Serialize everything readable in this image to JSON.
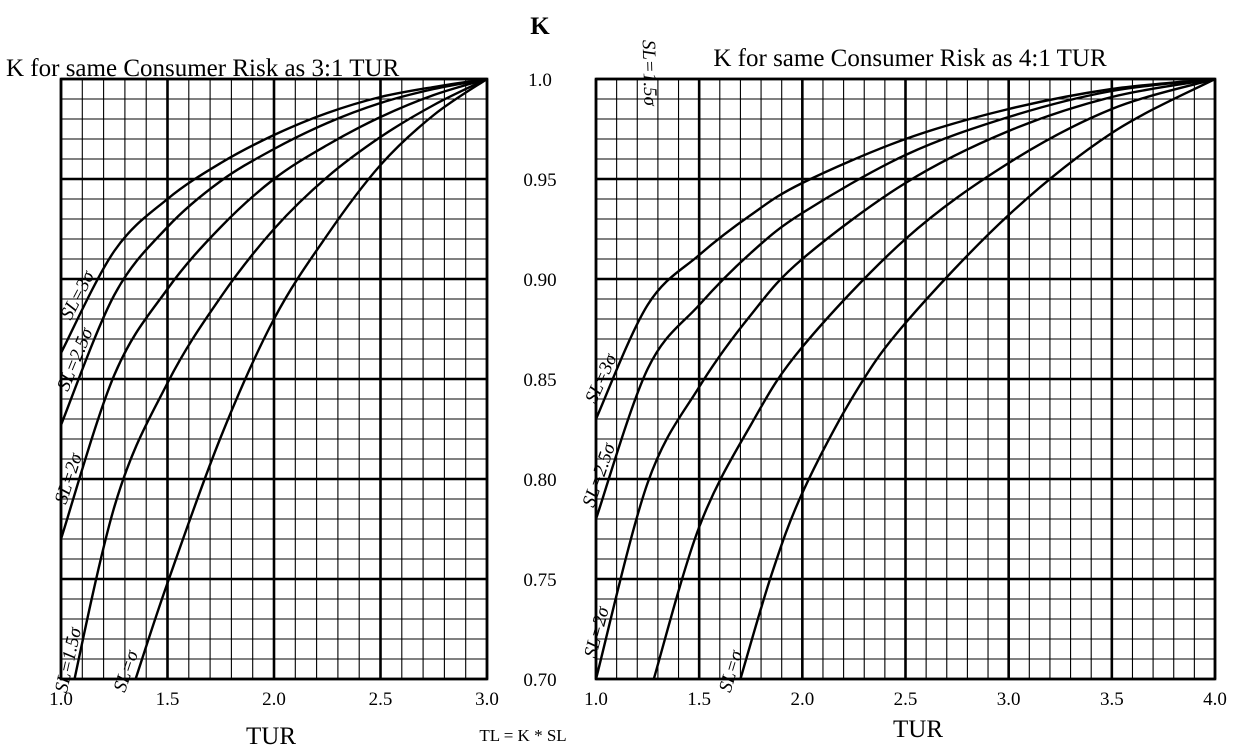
{
  "shared": {
    "k_axis_title": "K",
    "k_ticks": [
      "1.0",
      "0.95",
      "0.90",
      "0.85",
      "0.80",
      "0.75",
      "0.70"
    ],
    "footnote": "TL = K * SL"
  },
  "chart_data": [
    {
      "type": "line",
      "title": "K for same Consumer Risk as 3:1 TUR",
      "xlabel": "TUR",
      "ylabel": "K",
      "xlim": [
        1.0,
        3.0
      ],
      "ylim": [
        0.7,
        1.0
      ],
      "x_ticks": [
        "1.0",
        "1.5",
        "2.0",
        "2.5",
        "3.0"
      ],
      "grid": true,
      "series": [
        {
          "name": "SL=3σ",
          "points": [
            [
              1.0,
              0.863
            ],
            [
              1.25,
              0.914
            ],
            [
              1.5,
              0.94
            ],
            [
              1.75,
              0.958
            ],
            [
              2.0,
              0.972
            ],
            [
              2.25,
              0.983
            ],
            [
              2.5,
              0.991
            ],
            [
              2.75,
              0.996
            ],
            [
              3.0,
              1.0
            ]
          ]
        },
        {
          "name": "SL=2.5σ",
          "points": [
            [
              1.0,
              0.827
            ],
            [
              1.25,
              0.892
            ],
            [
              1.5,
              0.926
            ],
            [
              1.75,
              0.949
            ],
            [
              2.0,
              0.965
            ],
            [
              2.25,
              0.978
            ],
            [
              2.5,
              0.988
            ],
            [
              2.75,
              0.995
            ],
            [
              3.0,
              1.0
            ]
          ]
        },
        {
          "name": "SL=2σ",
          "points": [
            [
              1.0,
              0.77
            ],
            [
              1.25,
              0.852
            ],
            [
              1.5,
              0.895
            ],
            [
              1.75,
              0.926
            ],
            [
              2.0,
              0.95
            ],
            [
              2.25,
              0.967
            ],
            [
              2.5,
              0.981
            ],
            [
              2.75,
              0.992
            ],
            [
              3.0,
              1.0
            ]
          ]
        },
        {
          "name": "SL=1.5σ",
          "points": [
            [
              1.0,
              0.668
            ],
            [
              1.25,
              0.786
            ],
            [
              1.5,
              0.848
            ],
            [
              1.75,
              0.891
            ],
            [
              2.0,
              0.925
            ],
            [
              2.25,
              0.951
            ],
            [
              2.5,
              0.971
            ],
            [
              2.75,
              0.987
            ],
            [
              3.0,
              1.0
            ]
          ]
        },
        {
          "name": "SL=σ",
          "points": [
            [
              1.35,
              0.7
            ],
            [
              1.5,
              0.748
            ],
            [
              1.75,
              0.821
            ],
            [
              2.0,
              0.88
            ],
            [
              2.25,
              0.922
            ],
            [
              2.5,
              0.957
            ],
            [
              2.75,
              0.982
            ],
            [
              3.0,
              1.0
            ]
          ]
        }
      ]
    },
    {
      "type": "line",
      "title": "K for same Consumer Risk as 4:1 TUR",
      "xlabel": "TUR",
      "ylabel": "K",
      "xlim": [
        1.0,
        4.0
      ],
      "ylim": [
        0.7,
        1.0
      ],
      "x_ticks": [
        "1.0",
        "1.5",
        "2.0",
        "2.5",
        "3.0",
        "3.5",
        "4.0"
      ],
      "grid": true,
      "series": [
        {
          "name": "SL=3σ",
          "points": [
            [
              1.0,
              0.83
            ],
            [
              1.25,
              0.887
            ],
            [
              1.5,
              0.912
            ],
            [
              1.75,
              0.932
            ],
            [
              2.0,
              0.948
            ],
            [
              2.5,
              0.97
            ],
            [
              3.0,
              0.985
            ],
            [
              3.5,
              0.995
            ],
            [
              4.0,
              1.0
            ]
          ]
        },
        {
          "name": "SL=2.5σ",
          "points": [
            [
              1.0,
              0.78
            ],
            [
              1.25,
              0.855
            ],
            [
              1.5,
              0.887
            ],
            [
              1.75,
              0.913
            ],
            [
              2.0,
              0.933
            ],
            [
              2.5,
              0.962
            ],
            [
              3.0,
              0.981
            ],
            [
              3.5,
              0.994
            ],
            [
              4.0,
              1.0
            ]
          ]
        },
        {
          "name": "SL=2σ",
          "points": [
            [
              1.0,
              0.7
            ],
            [
              1.25,
              0.798
            ],
            [
              1.5,
              0.846
            ],
            [
              1.75,
              0.882
            ],
            [
              2.0,
              0.91
            ],
            [
              2.5,
              0.948
            ],
            [
              3.0,
              0.974
            ],
            [
              3.5,
              0.991
            ],
            [
              4.0,
              1.0
            ]
          ]
        },
        {
          "name": "SL=1.5σ",
          "points": [
            [
              1.28,
              0.7
            ],
            [
              1.5,
              0.776
            ],
            [
              1.75,
              0.827
            ],
            [
              2.0,
              0.866
            ],
            [
              2.5,
              0.92
            ],
            [
              3.0,
              0.958
            ],
            [
              3.5,
              0.985
            ],
            [
              4.0,
              1.0
            ]
          ]
        },
        {
          "name": "SL=σ",
          "points": [
            [
              1.7,
              0.7
            ],
            [
              1.85,
              0.752
            ],
            [
              2.0,
              0.793
            ],
            [
              2.25,
              0.842
            ],
            [
              2.5,
              0.878
            ],
            [
              3.0,
              0.932
            ],
            [
              3.5,
              0.973
            ],
            [
              4.0,
              1.0
            ]
          ]
        }
      ]
    }
  ]
}
